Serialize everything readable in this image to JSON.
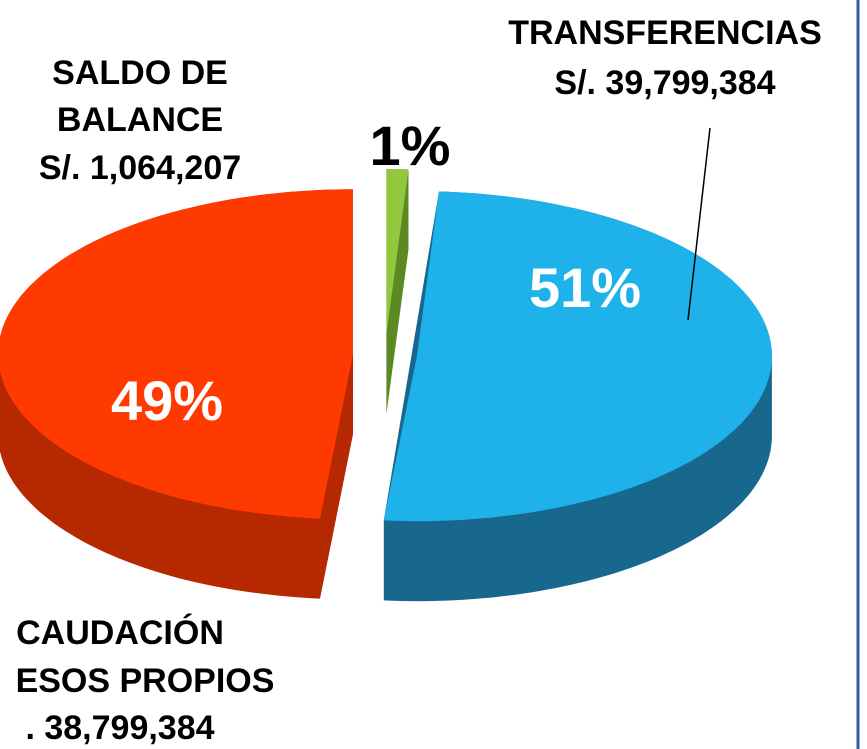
{
  "chart_data": {
    "type": "pie",
    "categories": [
      [
        "TRANSFERENCIAS",
        "S/.  39,799,384"
      ],
      [
        "CAUDACIÓN",
        "ESOS PROPIOS",
        ".  38,799,384"
      ],
      [
        "SALDO DE",
        "BALANCE",
        "S/.  1,064,207"
      ]
    ],
    "values": [
      51,
      49,
      1
    ],
    "value_labels": [
      "51%",
      "49%",
      "1%"
    ],
    "colors": [
      "#1fb2ea",
      "#ff3a00",
      "#92c83e"
    ],
    "side_colors": [
      "#17688c",
      "#b52800",
      "#5b8a25"
    ],
    "value_label_colors": [
      "#ffffff",
      "#ffffff",
      "#000000"
    ]
  }
}
